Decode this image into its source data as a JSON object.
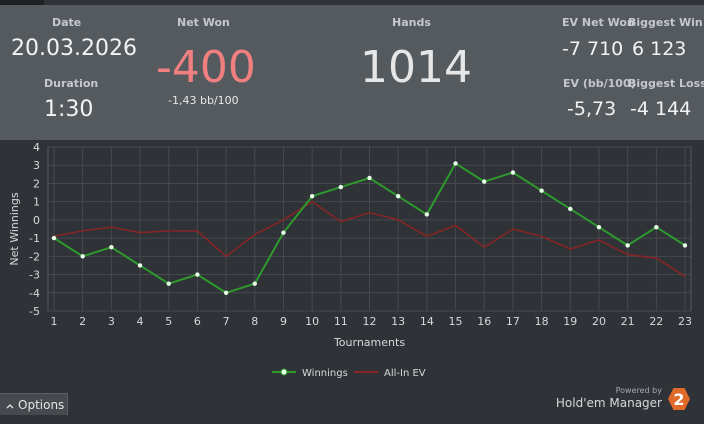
{
  "stats": {
    "date_label": "Date",
    "date_value": "20.03.2026",
    "duration_label": "Duration",
    "duration_value": "1:30",
    "net_won_label": "Net Won",
    "net_won_value": "-400",
    "net_won_sub": "-1,43 bb/100",
    "hands_label": "Hands",
    "hands_value": "1014",
    "ev_net_won_label": "EV Net Won",
    "ev_net_won_value": "-7 710",
    "biggest_win_label": "Biggest Win",
    "biggest_win_value": "6 123",
    "ev_bb_label": "EV (bb/100)",
    "ev_bb_value": "-5,73",
    "biggest_loss_label": "Biggest Loss",
    "biggest_loss_value": "-4 144"
  },
  "colors": {
    "stats_bg": "#555a5f",
    "chart_bg": "#2f3236",
    "net_won_negative": "#f08080",
    "winnings_line": "#2e9a2e",
    "allin_ev_line": "#8b2424"
  },
  "chart_data": {
    "type": "line",
    "xlabel": "Tournaments",
    "ylabel": "Net Winnings",
    "x": [
      1,
      2,
      3,
      4,
      5,
      6,
      7,
      8,
      9,
      10,
      11,
      12,
      13,
      14,
      15,
      16,
      17,
      18,
      19,
      20,
      21,
      22,
      23
    ],
    "ylim": [
      -5,
      4
    ],
    "yticks": [
      -5,
      -4,
      -3,
      -2,
      -1,
      0,
      1,
      2,
      3,
      4
    ],
    "grid": true,
    "legend": "bottom-center",
    "series": [
      {
        "name": "Winnings",
        "color": "#2e9a2e",
        "markers": true,
        "values": [
          -1,
          -2,
          -1.5,
          -2.5,
          -3.5,
          -3,
          -4,
          -3.5,
          -0.7,
          1.3,
          1.8,
          2.3,
          1.3,
          0.3,
          3.1,
          2.1,
          2.6,
          1.6,
          0.6,
          -0.4,
          -1.4,
          -0.4,
          -1.4
        ]
      },
      {
        "name": "All-In EV",
        "color": "#8b2424",
        "markers": false,
        "values": [
          -0.9,
          -0.6,
          -0.4,
          -0.7,
          -0.6,
          -0.6,
          -2.0,
          -0.8,
          0,
          1.0,
          -0.1,
          0.4,
          0,
          -0.9,
          -0.3,
          -1.5,
          -0.5,
          -0.9,
          -1.6,
          -1.1,
          -1.9,
          -2.1,
          -3.1
        ]
      }
    ]
  },
  "footer": {
    "options_label": "Options",
    "options_icon": "caret-up-icon",
    "powered_by": "Powered by",
    "brand_name": "Hold'em Manager",
    "brand_logo_text": "2"
  }
}
